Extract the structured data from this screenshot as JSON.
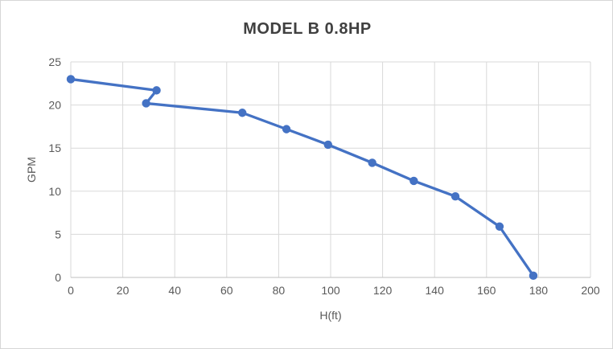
{
  "chart_data": {
    "type": "line",
    "title": "MODEL B 0.8HP",
    "xlabel": "H(ft)",
    "ylabel": "GPM",
    "xlim": [
      0,
      200
    ],
    "ylim": [
      0,
      25
    ],
    "xticks": [
      0,
      20,
      40,
      60,
      80,
      100,
      120,
      140,
      160,
      180,
      200
    ],
    "yticks": [
      0,
      5,
      10,
      15,
      20,
      25
    ],
    "grid": true,
    "legend": false,
    "series": [
      {
        "name": "MODEL B 0.8HP",
        "marker": "circle",
        "color": "#4472C4",
        "x": [
          0,
          33,
          29,
          66,
          83,
          99,
          116,
          132,
          148,
          165,
          178
        ],
        "y": [
          23.0,
          21.7,
          20.2,
          19.1,
          17.2,
          15.4,
          13.3,
          11.2,
          9.4,
          5.9,
          0.2
        ]
      }
    ]
  },
  "colors": {
    "line": "#4472C4",
    "gridline": "#d9d9d9",
    "axis_line": "#bfbfbf",
    "tick_text": "#595959",
    "title_text": "#404040",
    "border": "#d6d6d6",
    "background": "#ffffff"
  }
}
